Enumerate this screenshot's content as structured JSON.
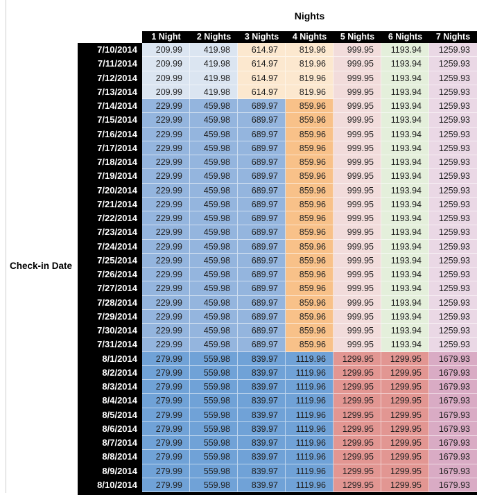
{
  "chart_data": {
    "type": "table",
    "title": "Nights",
    "row_header_label": "Check-in Date",
    "columns": [
      "1 Night",
      "2 Nights",
      "3 Nights",
      "4 Nights",
      "5 Nights",
      "6 Nights",
      "7 Nights"
    ],
    "rows": [
      {
        "date": "7/10/2014",
        "band": "A",
        "values": [
          "209.99",
          "419.98",
          "614.97",
          "819.96",
          "999.95",
          "1193.94",
          "1259.93"
        ]
      },
      {
        "date": "7/11/2014",
        "band": "A",
        "values": [
          "209.99",
          "419.98",
          "614.97",
          "819.96",
          "999.95",
          "1193.94",
          "1259.93"
        ]
      },
      {
        "date": "7/12/2014",
        "band": "A",
        "values": [
          "209.99",
          "419.98",
          "614.97",
          "819.96",
          "999.95",
          "1193.94",
          "1259.93"
        ]
      },
      {
        "date": "7/13/2014",
        "band": "A",
        "values": [
          "209.99",
          "419.98",
          "614.97",
          "819.96",
          "999.95",
          "1193.94",
          "1259.93"
        ]
      },
      {
        "date": "7/14/2014",
        "band": "B",
        "values": [
          "229.99",
          "459.98",
          "689.97",
          "859.96",
          "999.95",
          "1193.94",
          "1259.93"
        ]
      },
      {
        "date": "7/15/2014",
        "band": "B",
        "values": [
          "229.99",
          "459.98",
          "689.97",
          "859.96",
          "999.95",
          "1193.94",
          "1259.93"
        ]
      },
      {
        "date": "7/16/2014",
        "band": "B",
        "values": [
          "229.99",
          "459.98",
          "689.97",
          "859.96",
          "999.95",
          "1193.94",
          "1259.93"
        ]
      },
      {
        "date": "7/17/2014",
        "band": "B",
        "values": [
          "229.99",
          "459.98",
          "689.97",
          "859.96",
          "999.95",
          "1193.94",
          "1259.93"
        ]
      },
      {
        "date": "7/18/2014",
        "band": "B",
        "values": [
          "229.99",
          "459.98",
          "689.97",
          "859.96",
          "999.95",
          "1193.94",
          "1259.93"
        ]
      },
      {
        "date": "7/19/2014",
        "band": "B",
        "values": [
          "229.99",
          "459.98",
          "689.97",
          "859.96",
          "999.95",
          "1193.94",
          "1259.93"
        ]
      },
      {
        "date": "7/20/2014",
        "band": "B",
        "values": [
          "229.99",
          "459.98",
          "689.97",
          "859.96",
          "999.95",
          "1193.94",
          "1259.93"
        ]
      },
      {
        "date": "7/21/2014",
        "band": "B",
        "values": [
          "229.99",
          "459.98",
          "689.97",
          "859.96",
          "999.95",
          "1193.94",
          "1259.93"
        ]
      },
      {
        "date": "7/22/2014",
        "band": "B",
        "values": [
          "229.99",
          "459.98",
          "689.97",
          "859.96",
          "999.95",
          "1193.94",
          "1259.93"
        ]
      },
      {
        "date": "7/23/2014",
        "band": "B",
        "values": [
          "229.99",
          "459.98",
          "689.97",
          "859.96",
          "999.95",
          "1193.94",
          "1259.93"
        ]
      },
      {
        "date": "7/24/2014",
        "band": "B",
        "values": [
          "229.99",
          "459.98",
          "689.97",
          "859.96",
          "999.95",
          "1193.94",
          "1259.93"
        ]
      },
      {
        "date": "7/25/2014",
        "band": "B",
        "values": [
          "229.99",
          "459.98",
          "689.97",
          "859.96",
          "999.95",
          "1193.94",
          "1259.93"
        ]
      },
      {
        "date": "7/26/2014",
        "band": "B",
        "values": [
          "229.99",
          "459.98",
          "689.97",
          "859.96",
          "999.95",
          "1193.94",
          "1259.93"
        ]
      },
      {
        "date": "7/27/2014",
        "band": "B",
        "values": [
          "229.99",
          "459.98",
          "689.97",
          "859.96",
          "999.95",
          "1193.94",
          "1259.93"
        ]
      },
      {
        "date": "7/28/2014",
        "band": "B",
        "values": [
          "229.99",
          "459.98",
          "689.97",
          "859.96",
          "999.95",
          "1193.94",
          "1259.93"
        ]
      },
      {
        "date": "7/29/2014",
        "band": "B",
        "values": [
          "229.99",
          "459.98",
          "689.97",
          "859.96",
          "999.95",
          "1193.94",
          "1259.93"
        ]
      },
      {
        "date": "7/30/2014",
        "band": "B",
        "values": [
          "229.99",
          "459.98",
          "689.97",
          "859.96",
          "999.95",
          "1193.94",
          "1259.93"
        ]
      },
      {
        "date": "7/31/2014",
        "band": "B",
        "values": [
          "229.99",
          "459.98",
          "689.97",
          "859.96",
          "999.95",
          "1193.94",
          "1259.93"
        ]
      },
      {
        "date": "8/1/2014",
        "band": "C",
        "values": [
          "279.99",
          "559.98",
          "839.97",
          "1119.96",
          "1299.95",
          "1299.95",
          "1679.93"
        ]
      },
      {
        "date": "8/2/2014",
        "band": "C",
        "values": [
          "279.99",
          "559.98",
          "839.97",
          "1119.96",
          "1299.95",
          "1299.95",
          "1679.93"
        ]
      },
      {
        "date": "8/3/2014",
        "band": "C",
        "values": [
          "279.99",
          "559.98",
          "839.97",
          "1119.96",
          "1299.95",
          "1299.95",
          "1679.93"
        ]
      },
      {
        "date": "8/4/2014",
        "band": "C",
        "values": [
          "279.99",
          "559.98",
          "839.97",
          "1119.96",
          "1299.95",
          "1299.95",
          "1679.93"
        ]
      },
      {
        "date": "8/5/2014",
        "band": "C",
        "values": [
          "279.99",
          "559.98",
          "839.97",
          "1119.96",
          "1299.95",
          "1299.95",
          "1679.93"
        ]
      },
      {
        "date": "8/6/2014",
        "band": "C",
        "values": [
          "279.99",
          "559.98",
          "839.97",
          "1119.96",
          "1299.95",
          "1299.95",
          "1679.93"
        ]
      },
      {
        "date": "8/7/2014",
        "band": "C",
        "values": [
          "279.99",
          "559.98",
          "839.97",
          "1119.96",
          "1299.95",
          "1299.95",
          "1679.93"
        ]
      },
      {
        "date": "8/8/2014",
        "band": "C",
        "values": [
          "279.99",
          "559.98",
          "839.97",
          "1119.96",
          "1299.95",
          "1299.95",
          "1679.93"
        ]
      },
      {
        "date": "8/9/2014",
        "band": "C",
        "values": [
          "279.99",
          "559.98",
          "839.97",
          "1119.96",
          "1299.95",
          "1299.95",
          "1679.93"
        ]
      },
      {
        "date": "8/10/2014",
        "band": "C",
        "values": [
          "279.99",
          "559.98",
          "839.97",
          "1119.96",
          "1299.95",
          "1299.95",
          "1679.93"
        ]
      }
    ],
    "band_colors": {
      "A": [
        "#dbe5f1",
        "#dbe5f1",
        "#fce8cf",
        "#fce8cf",
        "#f2dcdb",
        "#e4efdb",
        "#ead8e5"
      ],
      "B": [
        "#94b5de",
        "#94b5de",
        "#94b5de",
        "#f8c189",
        "#f2dcdb",
        "#e4efdb",
        "#ead8e5"
      ],
      "C": [
        "#70a2d7",
        "#70a2d7",
        "#70a2d7",
        "#70a2d7",
        "#e29692",
        "#e29692",
        "#d9abc4"
      ]
    },
    "colors": {
      "header_bg": "#000000",
      "header_text": "#ffffff",
      "value_text": "#202020",
      "outer_border": "#000000",
      "worksheet_gridline": "#cdcdcd"
    },
    "layout": {
      "legend": "none",
      "grid": "white 1px separators between value cells",
      "row_count": 32,
      "column_count": 7
    }
  }
}
